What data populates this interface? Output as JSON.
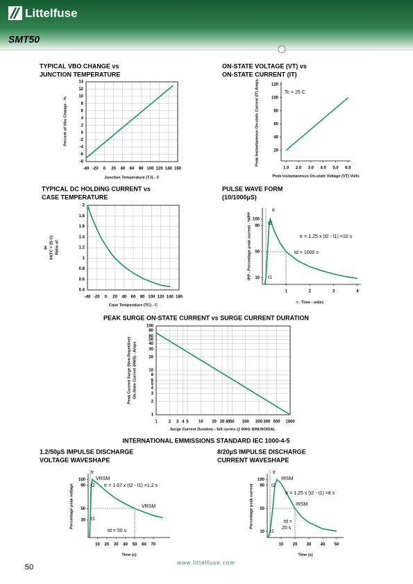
{
  "header": {
    "brand": "Littelfuse",
    "product": "SMT50"
  },
  "section_title": "INTERNATIONAL EMMISSIONS STANDARD IEC 1000-4-5",
  "footer": {
    "page": "50",
    "url": "www.littelfuse.com"
  },
  "chart_data": [
    {
      "type": "line",
      "title": [
        "TYPICAL VBO CHANGE vs",
        "JUNCTION TEMPERATURE"
      ],
      "ylabel": [
        "Percent of Vbo Change - %"
      ],
      "xlabel": [
        "Junction Temperature (TJ) - C"
      ],
      "x": [
        -40,
        150
      ],
      "values": [
        -7,
        13
      ],
      "color": "#14906a",
      "xlim": [
        -40,
        160
      ],
      "xticks": [
        -40,
        -20,
        0,
        20,
        40,
        60,
        80,
        100,
        120,
        140,
        160
      ],
      "ylim": [
        -8,
        14
      ],
      "yticks": [
        -8,
        -6,
        -4,
        -2,
        0,
        2,
        4,
        6,
        8,
        10,
        12,
        14
      ],
      "grid": true,
      "annotations": []
    },
    {
      "type": "line",
      "title": [
        "ON-STATE VOLTAGE (VT) vs",
        "ON-STATE CURRENT (IT)"
      ],
      "ylabel": [
        "Peak Instantaneous On-state Current (IT) Amps"
      ],
      "xlabel": [
        "Peak Instantaneous On-state Voltage (VT) Volts"
      ],
      "x": [
        1.0,
        6.0
      ],
      "values": [
        20,
        100
      ],
      "color": "#14906a",
      "xlim": [
        0.6,
        6.2
      ],
      "xticks": [
        {
          "value": 1,
          "label": "1.0"
        },
        {
          "value": 2,
          "label": "2.0"
        },
        {
          "value": 3,
          "label": "3.0"
        },
        {
          "value": 4,
          "label": "4.0"
        },
        {
          "value": 5,
          "label": "5.0"
        },
        {
          "value": 6,
          "label": "6.0"
        }
      ],
      "ylim": [
        4,
        124
      ],
      "yticks": [
        20,
        40,
        60,
        80,
        100,
        120
      ],
      "grid": false,
      "annotations": [
        "Tc = 25 C"
      ]
    },
    {
      "type": "line",
      "title": [
        "TYPICAL DC HOLDING CURRENT vs",
        "CASE TEMPERATURE"
      ],
      "ylabel": [
        "IH",
        "IH(TC = 25 C)",
        "Ratio of"
      ],
      "xlabel": [
        "Case Temperature (TC) - C"
      ],
      "x": [
        -40,
        -30,
        -20,
        -10,
        0,
        10,
        20,
        40,
        60,
        80,
        100,
        120,
        140
      ],
      "values": [
        2.0,
        1.76,
        1.56,
        1.38,
        1.24,
        1.11,
        1.0,
        0.84,
        0.72,
        0.62,
        0.55,
        0.49,
        0.46
      ],
      "color": "#14906a",
      "xlim": [
        -40,
        160
      ],
      "xticks": [
        -40,
        -20,
        0,
        20,
        40,
        60,
        80,
        100,
        120,
        140,
        160
      ],
      "ylim": [
        0.4,
        2
      ],
      "yticks": [
        0.4,
        0.6,
        0.8,
        1,
        1.2,
        1.4,
        1.6,
        1.8,
        2
      ],
      "grid": true,
      "annotations": []
    },
    {
      "type": "line",
      "title": [
        "PULSE WAVE FORM",
        "(10/1000µS)"
      ],
      "ylabel": [
        "IPP - Percentage peak current - %IPP"
      ],
      "xlabel": [
        "t - Time - mSec"
      ],
      "x": [
        0.1,
        0.15,
        0.28,
        0.33,
        0.5,
        0.75,
        1.0,
        1.5,
        2,
        2.5,
        3,
        3.5,
        4
      ],
      "values": [
        0,
        10,
        90,
        100,
        82,
        63,
        50,
        36,
        27,
        21,
        16,
        12,
        9
      ],
      "color": "#14906a",
      "xlim": [
        0,
        4.15
      ],
      "xticks": [
        1,
        2,
        3,
        4
      ],
      "ylim": [
        0,
        117
      ],
      "yticks": [
        10,
        50,
        90,
        100
      ],
      "grid": false,
      "annotations": [
        "tr",
        "t2",
        "t1",
        "tr = 1.25 x (t2 - t1) =10 s",
        "td = 1000 s"
      ]
    },
    {
      "type": "line",
      "title": [
        "PEAK SURGE ON-STATE CURRENT vs SURGE CURRENT DURATION"
      ],
      "ylabel": [
        "Peak Current Surge (Non-Repetitive)",
        "On-State Current (RMS) - Amps"
      ],
      "xlabel": [
        "Surge Current Duration - full cycles @ 60Hz SINUSOIDAL"
      ],
      "x": [
        1,
        1000
      ],
      "values": [
        70,
        1
      ],
      "color": "#14906a",
      "xlog": true,
      "ylog": true,
      "xlim": [
        1,
        1000
      ],
      "xticks": [
        1,
        2,
        3,
        4,
        5,
        10,
        20,
        30,
        40,
        50,
        100,
        200,
        300,
        500,
        1000
      ],
      "ylim": [
        1,
        100
      ],
      "yticks": [
        1,
        2,
        3,
        4,
        5,
        6,
        8,
        10,
        20,
        30,
        40,
        50,
        60,
        80,
        100
      ],
      "grid": true,
      "annotations": []
    },
    {
      "type": "line",
      "title": [
        "1.2/50µS IMPULSE DISCHARGE",
        "VOLTAGE WAVESHAPE"
      ],
      "ylabel": [
        "Percentage peak voltage"
      ],
      "xlabel": [
        "Time (s)"
      ],
      "x": [
        1.5,
        2.3,
        3,
        3.5,
        4.5,
        10,
        20,
        30,
        40,
        50,
        60,
        70,
        80
      ],
      "values": [
        0,
        30,
        70,
        90,
        100,
        93,
        79,
        67,
        58,
        50,
        44,
        38,
        34
      ],
      "color": "#14906a",
      "xlim": [
        0,
        88
      ],
      "xticks": [
        10,
        20,
        30,
        40,
        50,
        60,
        70
      ],
      "ylim": [
        0,
        110
      ],
      "yticks": [
        30,
        50,
        90,
        100
      ],
      "grid": false,
      "annotations": [
        "tr",
        "VRSM",
        "t2",
        "tr = 1.67 x (t2 - t1) =1.2 s",
        "VRSM",
        "t1",
        "td = 50 s"
      ]
    },
    {
      "type": "line",
      "title": [
        "8/20µS IMPULSE DISCHARGE",
        "CURRENT WAVESHAPE"
      ],
      "ylabel": [
        "Percentage peak current"
      ],
      "xlabel": [
        "Time (s)"
      ],
      "x": [
        0.5,
        2,
        4,
        5.5,
        7,
        10,
        15,
        20,
        25,
        30,
        40,
        50
      ],
      "values": [
        0,
        10,
        50,
        90,
        100,
        93,
        72,
        50,
        35,
        26,
        15,
        11
      ],
      "color": "#14906a",
      "xlim": [
        0,
        55
      ],
      "xticks": [
        10,
        20,
        30,
        40,
        50
      ],
      "ylim": [
        0,
        110
      ],
      "yticks": [
        10,
        50,
        90,
        100
      ],
      "grid": false,
      "annotations": [
        "tr",
        "IRSM",
        "t2",
        "tr = 1.25 x (t2 - t1) =8 s",
        "IRSM",
        "td =",
        "20 s",
        "t1"
      ]
    }
  ]
}
